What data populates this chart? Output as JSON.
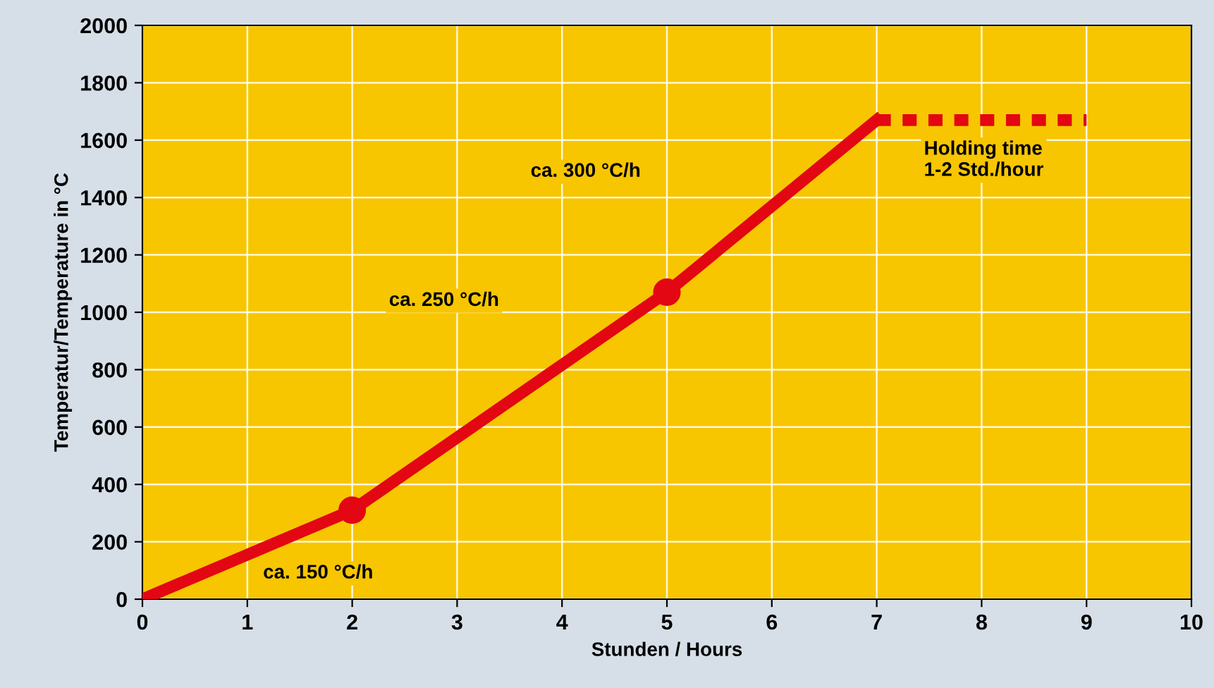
{
  "chart_data": {
    "type": "line",
    "xlabel": "Stunden / Hours",
    "ylabel": "Temperatur/Temperature in °C",
    "xlim": [
      0,
      10
    ],
    "xticks": [
      0,
      1,
      2,
      3,
      4,
      5,
      6,
      7,
      8,
      9,
      10
    ],
    "ylim": [
      0,
      2000
    ],
    "yticks": [
      0,
      200,
      400,
      600,
      800,
      1000,
      1200,
      1400,
      1600,
      1800,
      2000
    ],
    "grid": true,
    "series": [
      {
        "color": "#e30613",
        "x": [
          0,
          2,
          5,
          7
        ],
        "values": [
          0,
          310,
          1070,
          1670
        ],
        "line_style": "solid",
        "marker": "none"
      },
      {
        "type": "scatter",
        "color": "#e30613",
        "x": [
          2,
          5
        ],
        "values": [
          310,
          1070
        ],
        "marker": "circle"
      },
      {
        "color": "#e30613",
        "x": [
          7,
          9
        ],
        "values": [
          1670,
          1670
        ],
        "line_style": "dashed",
        "marker": "none"
      }
    ],
    "annotations": [
      "ca. 150 °C/h",
      "ca. 250 °C/h",
      "ca. 300 °C/h",
      "Holding time\n1-2 Std./hour"
    ]
  }
}
